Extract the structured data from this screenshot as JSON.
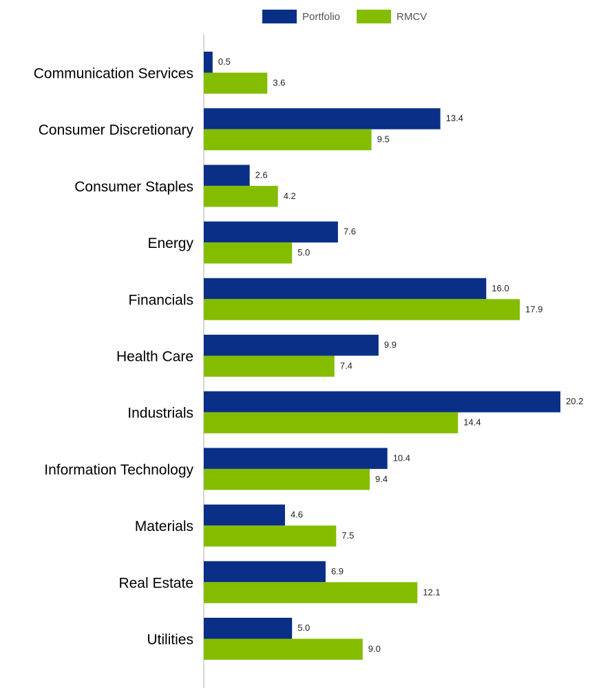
{
  "colors": {
    "portfolio": "#0a2f86",
    "rmcv": "#84bd00",
    "axis": "#c8c8c8"
  },
  "chart_data": {
    "type": "bar",
    "orientation": "horizontal",
    "legend_position": "top",
    "grid": false,
    "xlim": [
      0,
      20.2
    ],
    "categories": [
      "Communication Services",
      "Consumer Discretionary",
      "Consumer Staples",
      "Energy",
      "Financials",
      "Health Care",
      "Industrials",
      "Information Technology",
      "Materials",
      "Real Estate",
      "Utilities"
    ],
    "series": [
      {
        "name": "Portfolio",
        "values": [
          0.5,
          13.4,
          2.6,
          7.6,
          16.0,
          9.9,
          20.2,
          10.4,
          4.6,
          6.9,
          5.0
        ]
      },
      {
        "name": "RMCV",
        "values": [
          3.6,
          9.5,
          4.2,
          5.0,
          17.9,
          7.4,
          14.4,
          9.4,
          7.5,
          12.1,
          9.0
        ]
      }
    ]
  }
}
